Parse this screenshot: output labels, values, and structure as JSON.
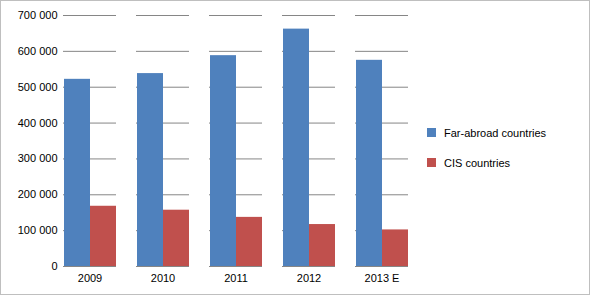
{
  "chart_data": {
    "type": "bar",
    "categories": [
      "2009",
      "2010",
      "2011",
      "2012",
      "2013 E"
    ],
    "series": [
      {
        "name": "Far-abroad countries",
        "color": "#4f81bd",
        "values": [
          522000,
          538000,
          588000,
          662000,
          575000
        ]
      },
      {
        "name": "CIS countries",
        "color": "#c0504d",
        "values": [
          168000,
          157000,
          137000,
          117000,
          102000
        ]
      }
    ],
    "ylim": [
      0,
      700000
    ],
    "yticks": [
      0,
      {
        "value": 100000,
        "label": "100 000"
      },
      {
        "value": 200000,
        "label": "200 000"
      },
      {
        "value": 300000,
        "label": "300 000"
      },
      {
        "value": 400000,
        "label": "400 000"
      },
      {
        "value": 500000,
        "label": "500 000"
      },
      {
        "value": 600000,
        "label": "600 000"
      },
      {
        "value": 700000,
        "label": "700 000"
      }
    ],
    "grid": true,
    "legend": "right"
  }
}
